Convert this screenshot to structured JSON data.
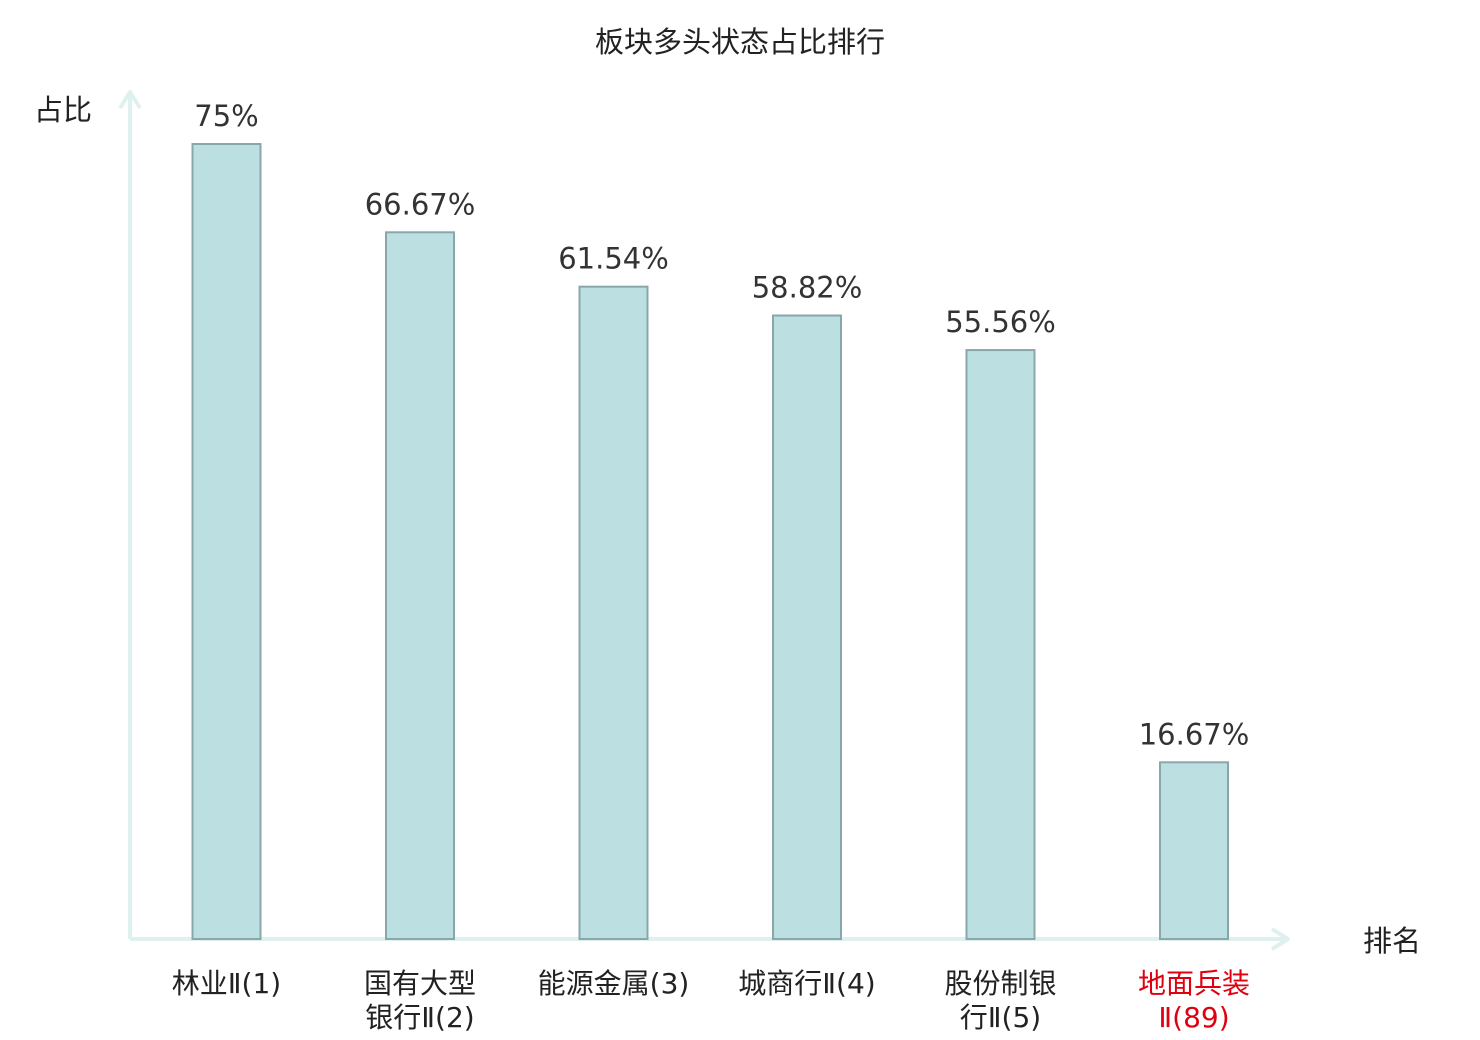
{
  "chart_data": {
    "type": "bar",
    "title": "板块多头状态占比排行",
    "ylabel": "占比",
    "xlabel": "排名",
    "ylim": [
      0,
      100
    ],
    "grid": false,
    "legend": "none",
    "categories": [
      {
        "lines": [
          "林业Ⅱ(1)"
        ],
        "highlight": false
      },
      {
        "lines": [
          "国有大型",
          "银行Ⅱ(2)"
        ],
        "highlight": false
      },
      {
        "lines": [
          "能源金属(3)"
        ],
        "highlight": false
      },
      {
        "lines": [
          "城商行Ⅱ(4)"
        ],
        "highlight": false
      },
      {
        "lines": [
          "股份制银",
          "行Ⅱ(5)"
        ],
        "highlight": false
      },
      {
        "lines": [
          "地面兵装",
          "Ⅱ(89)"
        ],
        "highlight": true
      }
    ],
    "values": [
      75,
      66.67,
      61.54,
      58.82,
      55.56,
      16.67
    ],
    "value_labels": [
      "75%",
      "66.67%",
      "61.54%",
      "58.82%",
      "55.56%",
      "16.67%"
    ]
  },
  "colors": {
    "bar_fill": "#bce0e2",
    "bar_stroke": "#89a7ab",
    "axis": "#dff1ee",
    "text": "#222222",
    "value_text": "#333333",
    "highlight": "#e0000f"
  }
}
